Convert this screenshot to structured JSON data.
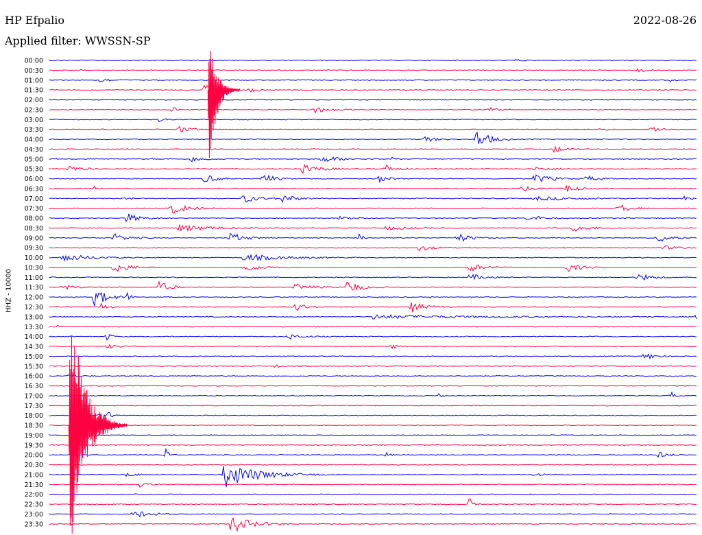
{
  "header": {
    "station": "HP Efpalio",
    "filter": "Applied filter: WWSSN-SP",
    "date": "2022-08-26"
  },
  "chart_data": {
    "type": "line",
    "title": "HP Efpalio",
    "subtitle": "Applied filter: WWSSN-SP",
    "ylabel": "HHZ - 10000",
    "xlabel": "",
    "colors": {
      "even": "#0000e6",
      "odd": "#ff0040"
    },
    "grid": false,
    "rows": [
      "00:00",
      "00:30",
      "01:00",
      "01:30",
      "02:00",
      "02:30",
      "03:00",
      "03:30",
      "04:00",
      "04:30",
      "05:00",
      "05:30",
      "06:00",
      "06:30",
      "07:00",
      "07:30",
      "08:00",
      "08:30",
      "09:00",
      "09:30",
      "10:00",
      "10:30",
      "11:00",
      "11:30",
      "12:00",
      "12:30",
      "13:00",
      "13:30",
      "14:00",
      "14:30",
      "15:00",
      "15:30",
      "16:00",
      "16:30",
      "17:00",
      "17:30",
      "18:00",
      "18:30",
      "19:00",
      "19:30",
      "20:00",
      "20:30",
      "21:00",
      "21:30",
      "22:00",
      "22:30",
      "23:00",
      "23:30"
    ],
    "events": [
      {
        "row": 0,
        "x": 0.72,
        "amp": 2,
        "dur": 0.02
      },
      {
        "row": 1,
        "x": 0.04,
        "amp": 2,
        "dur": 0.02
      },
      {
        "row": 1,
        "x": 0.91,
        "amp": 3,
        "dur": 0.03
      },
      {
        "row": 2,
        "x": 0.08,
        "amp": 5,
        "dur": 0.02
      },
      {
        "row": 3,
        "x": 0.24,
        "amp": 8,
        "dur": 0.03
      },
      {
        "row": 3,
        "x": 0.31,
        "amp": 4,
        "dur": 0.03
      },
      {
        "row": 5,
        "x": 0.19,
        "amp": 6,
        "dur": 0.01
      },
      {
        "row": 5,
        "x": 0.41,
        "amp": 5,
        "dur": 0.04
      },
      {
        "row": 5,
        "x": 0.68,
        "amp": 3,
        "dur": 0.03
      },
      {
        "row": 6,
        "x": 0.17,
        "amp": 3,
        "dur": 0.02
      },
      {
        "row": 7,
        "x": 0.2,
        "amp": 5,
        "dur": 0.04
      },
      {
        "row": 7,
        "x": 0.85,
        "amp": 2,
        "dur": 0.02
      },
      {
        "row": 7,
        "x": 0.93,
        "amp": 5,
        "dur": 0.03
      },
      {
        "row": 8,
        "x": 0.58,
        "amp": 4,
        "dur": 0.04
      },
      {
        "row": 8,
        "x": 0.66,
        "amp": 14,
        "dur": 0.04
      },
      {
        "row": 9,
        "x": 0.78,
        "amp": 5,
        "dur": 0.04
      },
      {
        "row": 10,
        "x": 0.22,
        "amp": 4,
        "dur": 0.04
      },
      {
        "row": 10,
        "x": 0.42,
        "amp": 5,
        "dur": 0.06
      },
      {
        "row": 10,
        "x": 0.53,
        "amp": 6,
        "dur": 0.01
      },
      {
        "row": 11,
        "x": 0.03,
        "amp": 5,
        "dur": 0.04
      },
      {
        "row": 11,
        "x": 0.39,
        "amp": 6,
        "dur": 0.06
      },
      {
        "row": 11,
        "x": 0.52,
        "amp": 6,
        "dur": 0.03
      },
      {
        "row": 11,
        "x": 0.75,
        "amp": 3,
        "dur": 0.05
      },
      {
        "row": 12,
        "x": 0.24,
        "amp": 8,
        "dur": 0.03
      },
      {
        "row": 12,
        "x": 0.33,
        "amp": 9,
        "dur": 0.03
      },
      {
        "row": 12,
        "x": 0.51,
        "amp": 5,
        "dur": 0.03
      },
      {
        "row": 12,
        "x": 0.75,
        "amp": 7,
        "dur": 0.05
      },
      {
        "row": 12,
        "x": 0.83,
        "amp": 5,
        "dur": 0.03
      },
      {
        "row": 13,
        "x": 0.07,
        "amp": 5,
        "dur": 0.01
      },
      {
        "row": 13,
        "x": 0.73,
        "amp": 3,
        "dur": 0.05
      },
      {
        "row": 13,
        "x": 0.8,
        "amp": 6,
        "dur": 0.03
      },
      {
        "row": 14,
        "x": 0.12,
        "amp": 5,
        "dur": 0.01
      },
      {
        "row": 14,
        "x": 0.3,
        "amp": 6,
        "dur": 0.05
      },
      {
        "row": 14,
        "x": 0.36,
        "amp": 6,
        "dur": 0.04
      },
      {
        "row": 14,
        "x": 0.75,
        "amp": 3,
        "dur": 0.12
      },
      {
        "row": 14,
        "x": 0.98,
        "amp": 6,
        "dur": 0.02
      },
      {
        "row": 15,
        "x": 0.19,
        "amp": 8,
        "dur": 0.05
      },
      {
        "row": 15,
        "x": 0.88,
        "amp": 7,
        "dur": 0.03
      },
      {
        "row": 16,
        "x": 0.12,
        "amp": 7,
        "dur": 0.04
      },
      {
        "row": 16,
        "x": 0.45,
        "amp": 4,
        "dur": 0.03
      },
      {
        "row": 16,
        "x": 0.74,
        "amp": 5,
        "dur": 0.04
      },
      {
        "row": 17,
        "x": 0.2,
        "amp": 5,
        "dur": 0.1
      },
      {
        "row": 17,
        "x": 0.52,
        "amp": 3,
        "dur": 0.06
      },
      {
        "row": 17,
        "x": 0.81,
        "amp": 5,
        "dur": 0.05
      },
      {
        "row": 18,
        "x": 0.1,
        "amp": 6,
        "dur": 0.04
      },
      {
        "row": 18,
        "x": 0.28,
        "amp": 8,
        "dur": 0.04
      },
      {
        "row": 18,
        "x": 0.48,
        "amp": 7,
        "dur": 0.01
      },
      {
        "row": 18,
        "x": 0.63,
        "amp": 7,
        "dur": 0.04
      },
      {
        "row": 18,
        "x": 0.94,
        "amp": 7,
        "dur": 0.04
      },
      {
        "row": 19,
        "x": 0.57,
        "amp": 5,
        "dur": 0.04
      },
      {
        "row": 19,
        "x": 0.95,
        "amp": 3,
        "dur": 0.05
      },
      {
        "row": 20,
        "x": 0.02,
        "amp": 6,
        "dur": 0.08
      },
      {
        "row": 20,
        "x": 0.3,
        "amp": 5,
        "dur": 0.12
      },
      {
        "row": 21,
        "x": 0.1,
        "amp": 8,
        "dur": 0.05
      },
      {
        "row": 21,
        "x": 0.3,
        "amp": 6,
        "dur": 0.05
      },
      {
        "row": 21,
        "x": 0.65,
        "amp": 7,
        "dur": 0.04
      },
      {
        "row": 21,
        "x": 0.8,
        "amp": 7,
        "dur": 0.04
      },
      {
        "row": 22,
        "x": 0.65,
        "amp": 5,
        "dur": 0.04
      },
      {
        "row": 22,
        "x": 0.91,
        "amp": 6,
        "dur": 0.04
      },
      {
        "row": 23,
        "x": 0.02,
        "amp": 4,
        "dur": 0.04
      },
      {
        "row": 23,
        "x": 0.17,
        "amp": 9,
        "dur": 0.03
      },
      {
        "row": 23,
        "x": 0.38,
        "amp": 5,
        "dur": 0.05
      },
      {
        "row": 23,
        "x": 0.46,
        "amp": 10,
        "dur": 0.04
      },
      {
        "row": 24,
        "x": 0.07,
        "amp": 14,
        "dur": 0.04
      },
      {
        "row": 24,
        "x": 0.12,
        "amp": 7,
        "dur": 0.01
      },
      {
        "row": 25,
        "x": 0.08,
        "amp": 6,
        "dur": 0.02
      },
      {
        "row": 25,
        "x": 0.38,
        "amp": 7,
        "dur": 0.03
      },
      {
        "row": 25,
        "x": 0.56,
        "amp": 8,
        "dur": 0.04
      },
      {
        "row": 26,
        "x": 0.5,
        "amp": 3,
        "dur": 0.3
      },
      {
        "row": 26,
        "x": 1.0,
        "amp": 4,
        "dur": 0.02
      },
      {
        "row": 27,
        "x": 0.01,
        "amp": 3,
        "dur": 0.02
      },
      {
        "row": 28,
        "x": 0.09,
        "amp": 7,
        "dur": 0.01
      },
      {
        "row": 28,
        "x": 0.37,
        "amp": 4,
        "dur": 0.04
      },
      {
        "row": 29,
        "x": 0.09,
        "amp": 3,
        "dur": 0.04
      },
      {
        "row": 29,
        "x": 0.53,
        "amp": 5,
        "dur": 0.01
      },
      {
        "row": 30,
        "x": 0.92,
        "amp": 6,
        "dur": 0.03
      },
      {
        "row": 31,
        "x": 0.35,
        "amp": 4,
        "dur": 0.01
      },
      {
        "row": 32,
        "x": 0.03,
        "amp": 3,
        "dur": 0.03
      },
      {
        "row": 34,
        "x": 0.6,
        "amp": 5,
        "dur": 0.01
      },
      {
        "row": 34,
        "x": 0.96,
        "amp": 7,
        "dur": 0.01
      },
      {
        "row": 36,
        "x": 0.08,
        "amp": 16,
        "dur": 0.02
      },
      {
        "row": 40,
        "x": 0.18,
        "amp": 10,
        "dur": 0.01
      },
      {
        "row": 40,
        "x": 0.52,
        "amp": 4,
        "dur": 0.01
      },
      {
        "row": 40,
        "x": 0.94,
        "amp": 5,
        "dur": 0.03
      },
      {
        "row": 42,
        "x": 0.12,
        "amp": 3,
        "dur": 0.03
      },
      {
        "row": 42,
        "x": 0.27,
        "amp": 20,
        "dur": 0.1
      },
      {
        "row": 42,
        "x": 0.75,
        "amp": 3,
        "dur": 0.02
      },
      {
        "row": 43,
        "x": 0.14,
        "amp": 4,
        "dur": 0.03
      },
      {
        "row": 45,
        "x": 0.65,
        "amp": 12,
        "dur": 0.01
      },
      {
        "row": 46,
        "x": 0.13,
        "amp": 6,
        "dur": 0.05
      },
      {
        "row": 47,
        "x": 0.28,
        "amp": 14,
        "dur": 0.06
      },
      {
        "row": 2,
        "x": 0.96,
        "amp": 2,
        "dur": 0.02
      }
    ],
    "large_events": [
      {
        "row": 3,
        "x": 0.245,
        "amp_up": 80,
        "amp_down": 120,
        "dur": 0.05
      },
      {
        "row": 37,
        "x": 0.03,
        "amp_up": 200,
        "amp_down": 190,
        "dur": 0.09
      }
    ]
  }
}
